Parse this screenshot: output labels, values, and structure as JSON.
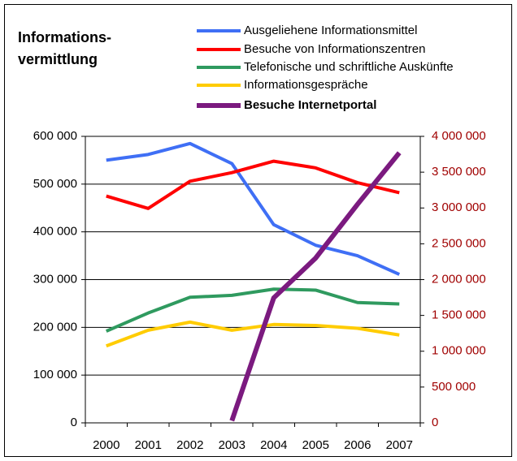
{
  "chart_data": {
    "type": "line",
    "title": [
      "Informations-",
      "vermittlung"
    ],
    "categories": [
      "2000",
      "2001",
      "2002",
      "2003",
      "2004",
      "2005",
      "2006",
      "2007"
    ],
    "ylim": [
      0,
      600000
    ],
    "yticks": [
      0,
      {
        "value": 100000,
        "label": "100 000"
      },
      {
        "value": 200000,
        "label": "200 000"
      },
      {
        "value": 300000,
        "label": "300 000"
      },
      {
        "value": 400000,
        "label": "400 000"
      },
      {
        "value": 500000,
        "label": "500 000"
      },
      {
        "value": 600000,
        "label": "600 000"
      }
    ],
    "y2lim": [
      0,
      4000000
    ],
    "y2ticks": [
      0,
      {
        "value": 500000,
        "label": "500 000"
      },
      {
        "value": 1000000,
        "label": "1 000 000"
      },
      {
        "value": 1500000,
        "label": "1 500 000"
      },
      {
        "value": 2000000,
        "label": "2 000 000"
      },
      {
        "value": 2500000,
        "label": "2 500 000"
      },
      {
        "value": 3000000,
        "label": "3 000 000"
      },
      {
        "value": 3500000,
        "label": "3 500 000"
      },
      {
        "value": 4000000,
        "label": "4 000 000"
      }
    ],
    "y2color": "#a00000",
    "grid": true,
    "legend": "top-right",
    "series": [
      {
        "name": "Ausgeliehene Informationsmittel",
        "color": "#3f6ff5",
        "values": [
          550000,
          562000,
          585000,
          543000,
          415000,
          372000,
          350000,
          311000
        ]
      },
      {
        "name": "Besuche von Informationszentren",
        "color": "#ff0000",
        "values": [
          475000,
          449000,
          506000,
          524000,
          548000,
          534000,
          503000,
          482000
        ]
      },
      {
        "name": "Telefonische und schriftliche Auskünfte",
        "color": "#2f9a5f",
        "values": [
          192000,
          230000,
          263000,
          267000,
          280000,
          278000,
          252000,
          249000
        ]
      },
      {
        "name": "Informationsgespräche",
        "color": "#ffcc00",
        "values": [
          161000,
          194000,
          211000,
          194000,
          206000,
          204000,
          198000,
          184000
        ]
      },
      {
        "name": "Besuche Internetportal",
        "color": "#7b1a7f",
        "axis": "y2",
        "bold": true,
        "values": [
          null,
          null,
          null,
          30000,
          1745000,
          2300000,
          3050000,
          3770000
        ]
      }
    ]
  }
}
